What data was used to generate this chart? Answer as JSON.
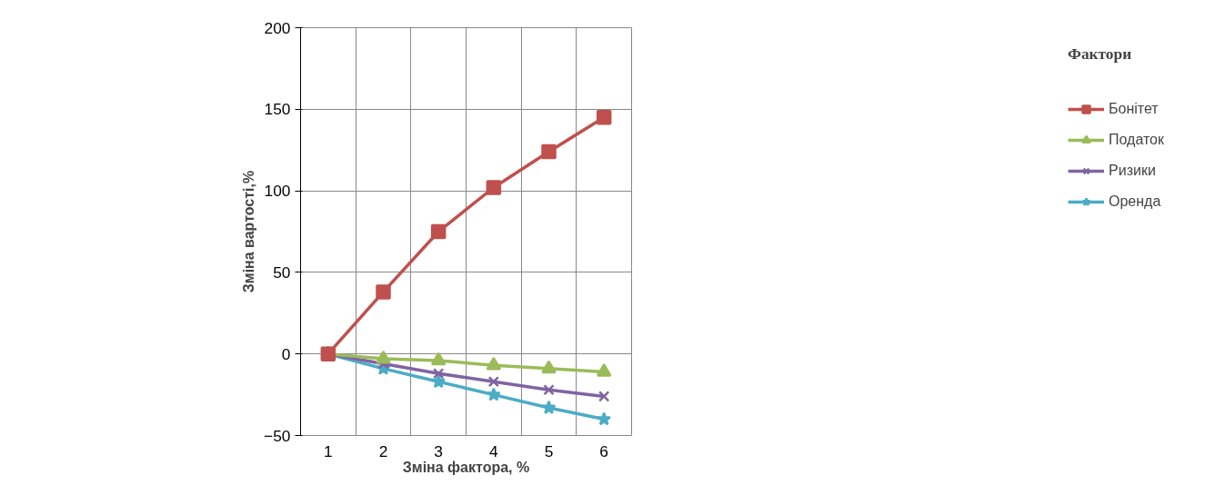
{
  "chart_data": {
    "type": "line",
    "xlabel": "Зміна фактора, %",
    "ylabel": "Зміна вартості,%",
    "legend_title": "Фактори",
    "categories": [
      "1",
      "2",
      "3",
      "4",
      "5",
      "6"
    ],
    "ylim": [
      -50,
      200
    ],
    "yticks": [
      -50,
      0,
      50,
      100,
      150,
      200
    ],
    "grid": true,
    "legend": "right",
    "line_style": "solid",
    "series": [
      {
        "name": "Бонітет",
        "color": "#c0504d",
        "marker": "square",
        "values": [
          0,
          38,
          75,
          102,
          124,
          145
        ]
      },
      {
        "name": "Податок",
        "color": "#9bbb59",
        "marker": "triangle",
        "values": [
          0,
          -3,
          -4,
          -7,
          -9,
          -11
        ]
      },
      {
        "name": "Ризики",
        "color": "#8064a2",
        "marker": "cross",
        "values": [
          0,
          -6,
          -12,
          -17,
          -22,
          -26
        ]
      },
      {
        "name": "Оренда",
        "color": "#4bacc6",
        "marker": "star",
        "values": [
          0,
          -9,
          -17,
          -25,
          -33,
          -40
        ]
      }
    ]
  }
}
